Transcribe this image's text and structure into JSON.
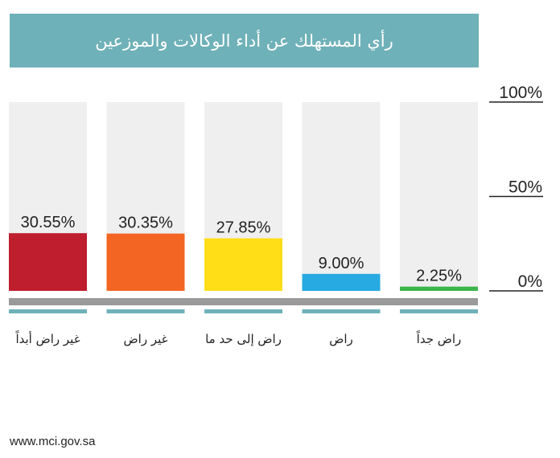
{
  "header": {
    "title": "رأي المستهلك عن أداء الوكالات والموزعين"
  },
  "footer": {
    "url": "www.mci.gov.sa"
  },
  "colors": {
    "title_bg": "#6fb1b8",
    "bar_bg": "#efefef",
    "baseline": "#9a9a9a",
    "underline": "#6fb1b8"
  },
  "chart_data": {
    "type": "bar",
    "categories": [
      "غير راض أبداً",
      "غير راض",
      "راض إلى حد ما",
      "راض",
      "راض جداً"
    ],
    "values": [
      30.55,
      30.35,
      27.85,
      9.0,
      2.25
    ],
    "value_labels": [
      "30.55%",
      "30.35%",
      "27.85%",
      "9.00%",
      "2.25%"
    ],
    "colors": [
      "#be1e2d",
      "#f26522",
      "#ffde17",
      "#27aae1",
      "#39b54a"
    ],
    "ylim": [
      0,
      100
    ],
    "yticks": [
      0,
      50,
      100
    ],
    "ytick_labels": [
      "0%",
      "50%",
      "100%"
    ],
    "axis_position": "right",
    "grid": false,
    "title": "رأي المستهلك عن أداء الوكالات والموزعين",
    "xlabel": "",
    "ylabel": ""
  }
}
